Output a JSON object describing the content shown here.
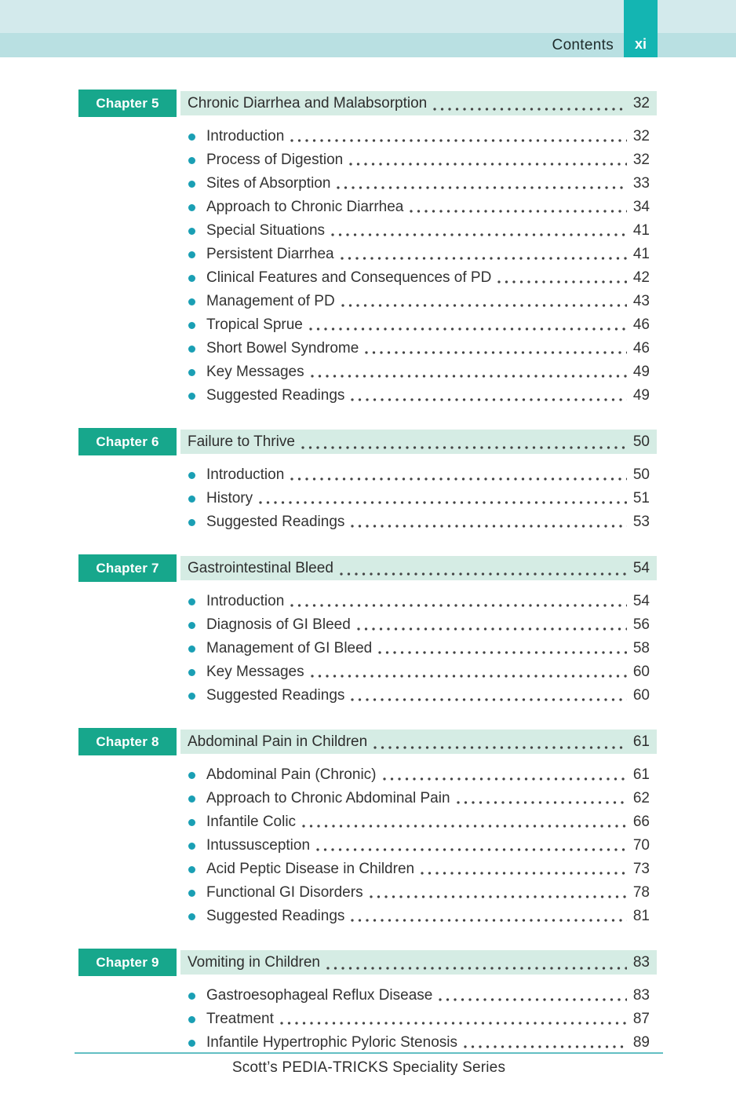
{
  "header": {
    "title": "Contents",
    "page_number": "xi"
  },
  "chapters": [
    {
      "badge": "Chapter 5",
      "title": "Chronic Diarrhea and Malabsorption",
      "page": "32",
      "items": [
        {
          "label": "Introduction",
          "page": "32"
        },
        {
          "label": "Process of Digestion",
          "page": "32"
        },
        {
          "label": "Sites of Absorption",
          "page": "33"
        },
        {
          "label": "Approach to Chronic Diarrhea",
          "page": "34"
        },
        {
          "label": "Special Situations",
          "page": "41"
        },
        {
          "label": "Persistent Diarrhea",
          "page": "41"
        },
        {
          "label": "Clinical Features and Consequences of PD",
          "page": "42"
        },
        {
          "label": "Management of PD",
          "page": "43"
        },
        {
          "label": "Tropical Sprue",
          "page": "46"
        },
        {
          "label": "Short Bowel Syndrome",
          "page": "46"
        },
        {
          "label": "Key Messages",
          "page": "49"
        },
        {
          "label": "Suggested Readings",
          "page": "49"
        }
      ]
    },
    {
      "badge": "Chapter 6",
      "title": "Failure to Thrive",
      "page": "50",
      "items": [
        {
          "label": "Introduction",
          "page": "50"
        },
        {
          "label": "History",
          "page": "51"
        },
        {
          "label": "Suggested Readings",
          "page": "53"
        }
      ]
    },
    {
      "badge": "Chapter 7",
      "title": "Gastrointestinal Bleed",
      "page": "54",
      "items": [
        {
          "label": "Introduction",
          "page": "54"
        },
        {
          "label": "Diagnosis of GI Bleed",
          "page": "56"
        },
        {
          "label": "Management of GI Bleed",
          "page": "58"
        },
        {
          "label": "Key Messages",
          "page": "60"
        },
        {
          "label": "Suggested Readings",
          "page": "60"
        }
      ]
    },
    {
      "badge": "Chapter 8",
      "title": "Abdominal Pain in Children",
      "page": "61",
      "items": [
        {
          "label": "Abdominal Pain (Chronic)",
          "page": "61"
        },
        {
          "label": "Approach to Chronic Abdominal Pain",
          "page": "62"
        },
        {
          "label": "Infantile Colic",
          "page": "66"
        },
        {
          "label": "Intussusception",
          "page": "70"
        },
        {
          "label": "Acid Peptic Disease in Children",
          "page": "73"
        },
        {
          "label": "Functional GI Disorders",
          "page": "78"
        },
        {
          "label": "Suggested Readings",
          "page": "81"
        }
      ]
    },
    {
      "badge": "Chapter 9",
      "title": "Vomiting in Children",
      "page": "83",
      "items": [
        {
          "label": "Gastroesophageal Reflux Disease",
          "page": "83"
        },
        {
          "label": "Treatment",
          "page": "87"
        },
        {
          "label": "Infantile Hypertrophic Pyloric Stenosis",
          "page": "89"
        }
      ]
    }
  ],
  "footer": {
    "series_title": "Scott’s PEDIA-TRICKS Speciality Series"
  },
  "colors": {
    "band_top": "#d3eaec",
    "band_bottom": "#b9e0e2",
    "page_number_box": "#14b5b2",
    "chapter_badge": "#17a78c",
    "chapter_row_background": "#d5ece4",
    "bullet": "#1a9fb4",
    "footer_rule": "#62bfc3",
    "text": "#333333"
  }
}
